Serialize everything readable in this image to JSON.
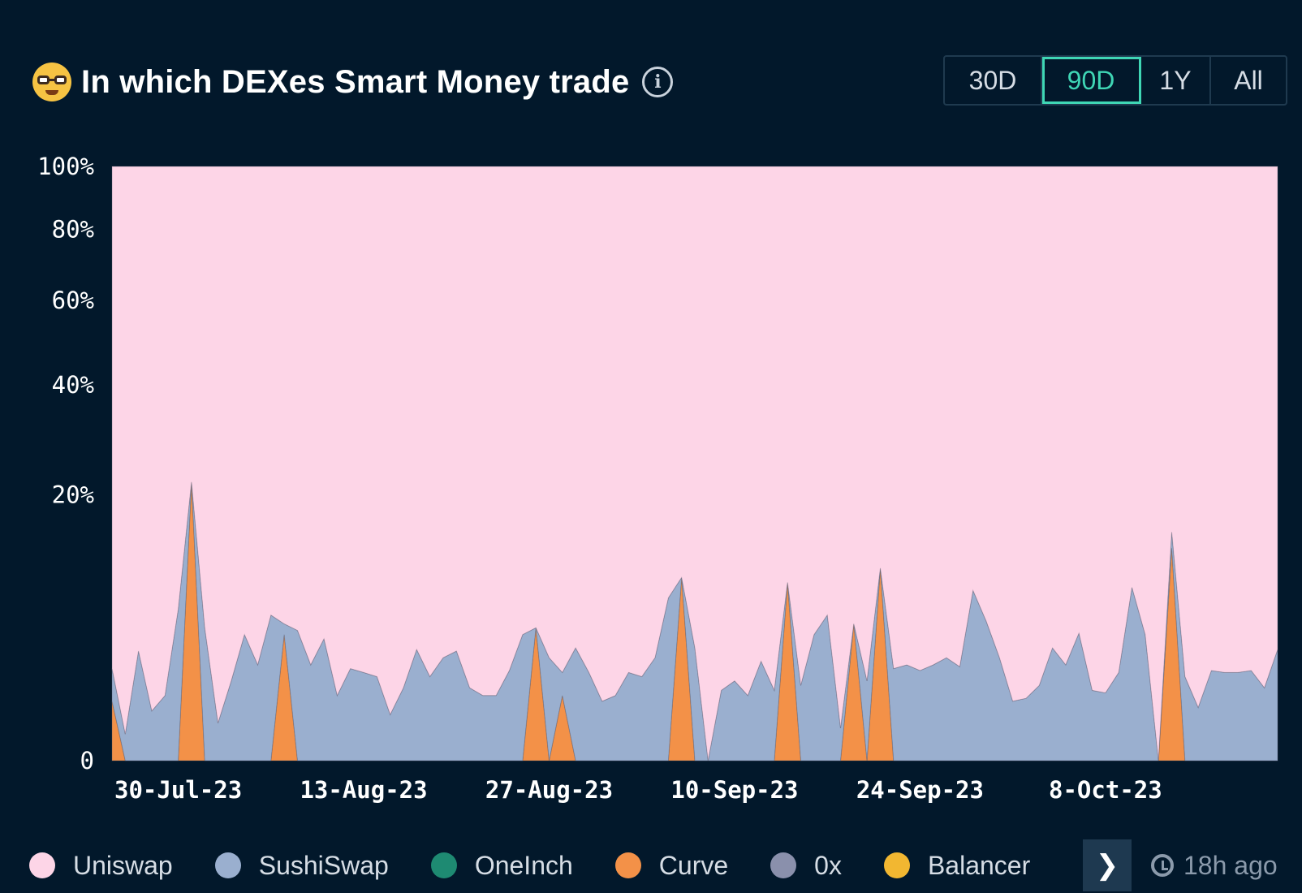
{
  "header": {
    "title": "In which DEXes Smart Money trade",
    "emoji_icon": "nerd-face-icon",
    "info_icon": "info-icon"
  },
  "range_selector": {
    "options": [
      "30D",
      "90D",
      "1Y",
      "All"
    ],
    "active": "90D"
  },
  "legend": {
    "items": [
      {
        "label": "Uniswap",
        "color": "#fdd5e7"
      },
      {
        "label": "SushiSwap",
        "color": "#9aafcf"
      },
      {
        "label": "OneInch",
        "color": "#1e8a72"
      },
      {
        "label": "Curve",
        "color": "#f39148"
      },
      {
        "label": "0x",
        "color": "#8a90ac"
      },
      {
        "label": "Balancer",
        "color": "#f2b731"
      }
    ],
    "next_icon": "chevron-right-icon"
  },
  "updated": {
    "text": "18h ago",
    "icon": "refresh-clock-icon"
  },
  "chart_data": {
    "type": "area",
    "stacked": true,
    "scale": "sqrt",
    "ylim": [
      0,
      100
    ],
    "yticks": [
      0,
      20,
      40,
      60,
      80,
      100
    ],
    "ytick_labels": [
      "0",
      "20%",
      "40%",
      "60%",
      "80%",
      "100%"
    ],
    "xtick_labels": [
      "30-Jul-23",
      "13-Aug-23",
      "27-Aug-23",
      "10-Sep-23",
      "24-Sep-23",
      "8-Oct-23"
    ],
    "xtick_dates": [
      "2023-07-30",
      "2023-08-13",
      "2023-08-27",
      "2023-09-10",
      "2023-09-24",
      "2023-10-08"
    ],
    "x": [
      "2023-07-25",
      "2023-07-26",
      "2023-07-27",
      "2023-07-28",
      "2023-07-29",
      "2023-07-30",
      "2023-07-31",
      "2023-08-01",
      "2023-08-02",
      "2023-08-03",
      "2023-08-04",
      "2023-08-05",
      "2023-08-06",
      "2023-08-07",
      "2023-08-08",
      "2023-08-09",
      "2023-08-10",
      "2023-08-11",
      "2023-08-12",
      "2023-08-13",
      "2023-08-14",
      "2023-08-15",
      "2023-08-16",
      "2023-08-17",
      "2023-08-18",
      "2023-08-19",
      "2023-08-20",
      "2023-08-21",
      "2023-08-22",
      "2023-08-23",
      "2023-08-24",
      "2023-08-25",
      "2023-08-26",
      "2023-08-27",
      "2023-08-28",
      "2023-08-29",
      "2023-08-30",
      "2023-08-31",
      "2023-09-01",
      "2023-09-02",
      "2023-09-03",
      "2023-09-04",
      "2023-09-05",
      "2023-09-06",
      "2023-09-07",
      "2023-09-08",
      "2023-09-09",
      "2023-09-10",
      "2023-09-11",
      "2023-09-12",
      "2023-09-13",
      "2023-09-14",
      "2023-09-15",
      "2023-09-16",
      "2023-09-17",
      "2023-09-18",
      "2023-09-19",
      "2023-09-20",
      "2023-09-21",
      "2023-09-22",
      "2023-09-23",
      "2023-09-24",
      "2023-09-25",
      "2023-09-26",
      "2023-09-27",
      "2023-09-28",
      "2023-09-29",
      "2023-09-30",
      "2023-10-01",
      "2023-10-02",
      "2023-10-03",
      "2023-10-04",
      "2023-10-05",
      "2023-10-06",
      "2023-10-07",
      "2023-10-08",
      "2023-10-09",
      "2023-10-10",
      "2023-10-11",
      "2023-10-12",
      "2023-10-13",
      "2023-10-14",
      "2023-10-15",
      "2023-10-16",
      "2023-10-17",
      "2023-10-18",
      "2023-10-19",
      "2023-10-20",
      "2023-10-21"
    ],
    "series": [
      {
        "name": "Curve",
        "values": [
          1.0,
          0.0,
          0.0,
          0.0,
          0.0,
          0.0,
          22.0,
          0.0,
          0.0,
          0.0,
          0.0,
          0.0,
          0.0,
          4.5,
          0.0,
          0.0,
          0.0,
          0.0,
          0.0,
          0.0,
          0.0,
          0.0,
          0.0,
          0.0,
          0.0,
          0.0,
          0.0,
          0.0,
          0.0,
          0.0,
          0.0,
          0.0,
          5.0,
          0.0,
          1.2,
          0.0,
          0.0,
          0.0,
          0.0,
          0.0,
          0.0,
          0.0,
          0.0,
          9.5,
          0.0,
          0.0,
          0.0,
          0.0,
          0.0,
          0.0,
          0.0,
          9.0,
          0.0,
          0.0,
          0.0,
          0.0,
          5.3,
          0.0,
          10.5,
          0.0,
          0.0,
          0.0,
          0.0,
          0.0,
          0.0,
          0.0,
          0.0,
          0.0,
          0.0,
          0.0,
          0.0,
          0.0,
          0.0,
          0.0,
          0.0,
          0.0,
          0.0,
          0.0,
          0.0,
          0.0,
          12.8,
          0.0,
          0.0,
          0.0,
          0.0,
          0.0,
          0.0,
          0.0,
          0.0
        ]
      },
      {
        "name": "SushiSwap",
        "values": [
          1.4,
          0.2,
          3.4,
          0.7,
          1.2,
          6.5,
          0.0,
          5.0,
          0.4,
          1.8,
          4.5,
          2.6,
          6.0,
          0.8,
          4.8,
          2.6,
          4.2,
          1.2,
          2.4,
          2.2,
          2.0,
          0.6,
          1.5,
          3.5,
          2.0,
          3.0,
          3.4,
          1.5,
          1.2,
          1.2,
          2.3,
          4.5,
          0.0,
          3.0,
          1.0,
          3.6,
          2.2,
          1.0,
          1.2,
          2.2,
          2.0,
          3.0,
          7.5,
          0.0,
          3.6,
          0.0,
          1.4,
          1.8,
          1.2,
          2.8,
          1.4,
          0.0,
          1.6,
          4.5,
          6.0,
          0.3,
          0.0,
          1.8,
          0.0,
          2.4,
          2.6,
          2.3,
          2.6,
          3.0,
          2.5,
          8.2,
          5.5,
          3.0,
          1.0,
          1.1,
          1.6,
          3.6,
          2.6,
          4.6,
          1.4,
          1.3,
          2.2,
          8.5,
          4.5,
          0.0,
          2.0,
          2.0,
          0.8,
          2.3,
          2.2,
          2.2,
          2.3,
          1.5,
          3.5
        ]
      },
      {
        "name": "Uniswap",
        "values": [
          97.6,
          99.8,
          96.6,
          99.3,
          98.8,
          93.5,
          78.0,
          95.0,
          99.6,
          98.2,
          95.5,
          97.4,
          94.0,
          94.7,
          95.2,
          97.4,
          95.8,
          98.8,
          97.6,
          97.8,
          98.0,
          99.4,
          98.5,
          96.5,
          98.0,
          97.0,
          96.6,
          98.5,
          98.8,
          98.8,
          97.7,
          95.5,
          95.0,
          97.0,
          97.8,
          96.4,
          97.8,
          99.0,
          98.8,
          97.8,
          98.0,
          97.0,
          92.5,
          90.5,
          96.4,
          100.0,
          98.6,
          98.2,
          98.8,
          97.2,
          98.6,
          91.0,
          98.4,
          95.5,
          94.0,
          99.7,
          94.7,
          98.2,
          89.5,
          97.6,
          97.4,
          97.7,
          97.4,
          97.0,
          97.5,
          91.8,
          94.5,
          97.0,
          99.0,
          98.9,
          98.4,
          96.4,
          97.4,
          95.4,
          98.6,
          98.7,
          97.8,
          91.5,
          95.5,
          100.0,
          85.2,
          98.0,
          99.2,
          97.7,
          97.8,
          97.8,
          97.7,
          98.5,
          96.5
        ]
      }
    ]
  }
}
